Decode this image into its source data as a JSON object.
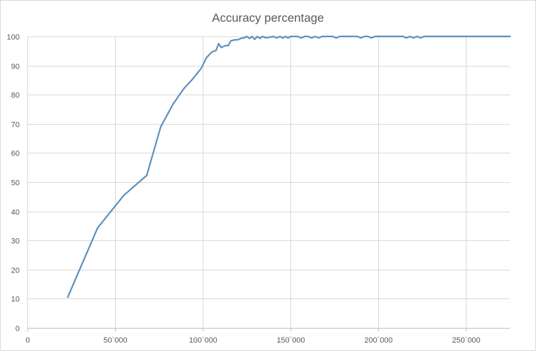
{
  "chart_data": {
    "type": "line",
    "title": "Accuracy percentage",
    "xlabel": "",
    "ylabel": "",
    "xlim": [
      0,
      275000
    ],
    "ylim": [
      0,
      100
    ],
    "grid": true,
    "legend": "none",
    "x_ticks": [
      {
        "value": 0,
        "label": "0"
      },
      {
        "value": 50000,
        "label": "50`000"
      },
      {
        "value": 100000,
        "label": "100`000"
      },
      {
        "value": 150000,
        "label": "150`000"
      },
      {
        "value": 200000,
        "label": "200`000"
      },
      {
        "value": 250000,
        "label": "250`000"
      }
    ],
    "y_ticks": [
      {
        "value": 0,
        "label": "0"
      },
      {
        "value": 10,
        "label": "10"
      },
      {
        "value": 20,
        "label": "20"
      },
      {
        "value": 30,
        "label": "30"
      },
      {
        "value": 40,
        "label": "40"
      },
      {
        "value": 50,
        "label": "50"
      },
      {
        "value": 60,
        "label": "60"
      },
      {
        "value": 70,
        "label": "70"
      },
      {
        "value": 80,
        "label": "80"
      },
      {
        "value": 90,
        "label": "90"
      },
      {
        "value": 100,
        "label": "100"
      }
    ],
    "colors": {
      "series": "#5b8fbf",
      "grid": "#d9d9d9",
      "axis": "#bfbfbf",
      "text": "#595959"
    },
    "series": [
      {
        "x": [
          23000,
          40000,
          55000,
          68000,
          76000,
          83000,
          89000,
          94000,
          99000,
          102000,
          105000,
          107500,
          109000,
          110500,
          112500,
          114500,
          116000,
          118000,
          120000,
          122000,
          123500,
          125000,
          126500,
          128000,
          129500,
          131000,
          132500,
          134000,
          136000,
          138000,
          140000,
          142000,
          144000,
          145500,
          147000,
          148500,
          150000,
          152000,
          154000,
          156000,
          158000,
          160000,
          162000,
          164000,
          166000,
          168000,
          170000,
          172000,
          174000,
          176000,
          178000,
          180000,
          184000,
          188000,
          190000,
          192000,
          194000,
          196000,
          198000,
          202000,
          206000,
          210000,
          214000,
          216000,
          218000,
          220000,
          222000,
          224000,
          226000,
          228000,
          232000,
          240000,
          250000,
          260000,
          275000
        ],
        "y": [
          10.5,
          34.3,
          45.5,
          52.3,
          69,
          76.8,
          82,
          85.3,
          89,
          92.7,
          94.6,
          95.2,
          97.5,
          96.2,
          96.8,
          96.9,
          98.5,
          98.8,
          98.9,
          99.4,
          99.5,
          100,
          99.3,
          100,
          99,
          100,
          99.3,
          100,
          99.5,
          99.7,
          100,
          99.5,
          100,
          99.4,
          100,
          99.5,
          100,
          100,
          100,
          99.5,
          100,
          100,
          99.5,
          100,
          99.5,
          100,
          100,
          100,
          100,
          99.5,
          100,
          100,
          100,
          100,
          99.5,
          100,
          100,
          99.5,
          100,
          100,
          100,
          100,
          100,
          99.5,
          100,
          99.5,
          100,
          99.5,
          100,
          100,
          100,
          100,
          100,
          100,
          100
        ]
      }
    ]
  }
}
